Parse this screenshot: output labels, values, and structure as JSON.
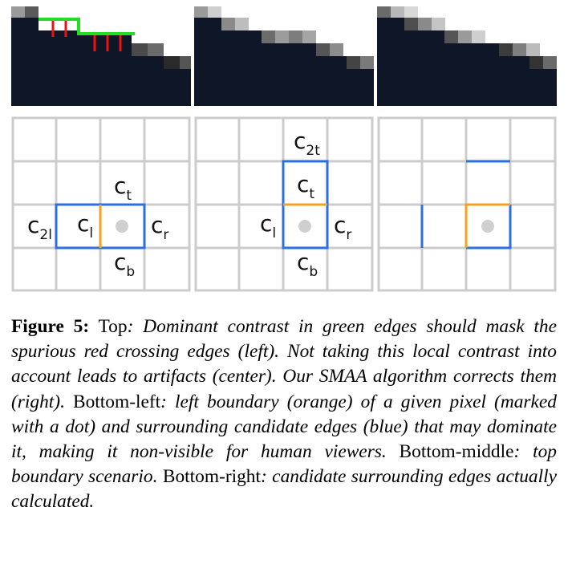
{
  "figure": {
    "label": "Figure 5:",
    "parts": [
      {
        "text": " Top",
        "style": "regular"
      },
      {
        "text": ": Dominant contrast in green edges should mask the spurious red crossing edges (left). Not taking this local contrast into account leads to artifacts (center). Our SMAA algorithm corrects them (right).",
        "style": "italic"
      },
      {
        "text": " Bottom-left",
        "style": "regular"
      },
      {
        "text": ": left boundary (orange) of a given pixel (marked with a dot) and surrounding candidate edges (blue) that may dominate it, making it non-visible for human viewers.",
        "style": "italic"
      },
      {
        "text": " Bottom-middle",
        "style": "regular"
      },
      {
        "text": ": top boundary scenario.",
        "style": "italic"
      },
      {
        "text": " Bottom-right",
        "style": "regular"
      },
      {
        "text": ": candidate surrounding edges actually calculated.",
        "style": "italic"
      }
    ]
  },
  "grid_labels": {
    "left": {
      "ct_base": "c",
      "ct_sub": "t",
      "c2l_base": "c",
      "c2l_sub": "2l",
      "cl_base": "c",
      "cl_sub": "l",
      "cr_base": "c",
      "cr_sub": "r",
      "cb_base": "c",
      "cb_sub": "b"
    },
    "middle": {
      "c2t_base": "c",
      "c2t_sub": "2t",
      "ct_base": "c",
      "ct_sub": "t",
      "cl_base": "c",
      "cl_sub": "l",
      "cr_base": "c",
      "cr_sub": "r",
      "cb_base": "c",
      "cb_sub": "b"
    }
  },
  "colors": {
    "grid": "#cccccc",
    "candidate_edge": "#2b6fe0",
    "boundary_edge": "#f5a020",
    "dominant_edge": "#22dd22",
    "spurious_edge": "#ee1111",
    "pixel_dot": "#cfcfcf",
    "dark_pixel": "#0e1628"
  },
  "icons": {
    "pixel_marker": "dot-icon"
  }
}
